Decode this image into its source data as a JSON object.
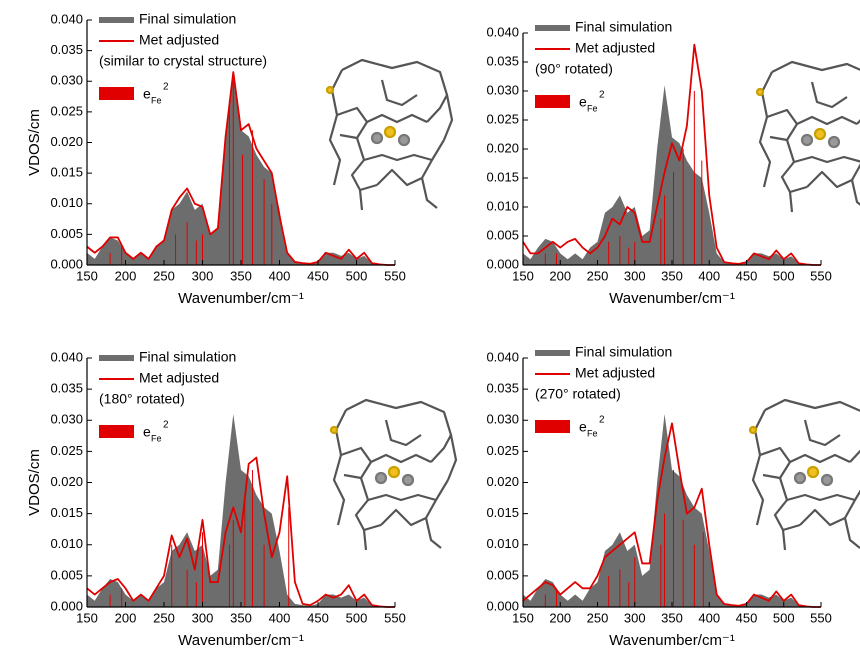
{
  "chart_data": [
    {
      "type": "area",
      "x_label": "Wavenumber/cm⁻¹",
      "y_label": "VDOS/cm",
      "annotation": "(similar to crystal structure)",
      "xlim": [
        150,
        550
      ],
      "xticks": [
        150,
        200,
        250,
        300,
        350,
        400,
        450,
        500,
        550
      ],
      "ylim": [
        0,
        0.04
      ],
      "yticks": [
        {
          "value": 0,
          "label": "0.000"
        },
        {
          "value": 0.005,
          "label": "0.005"
        },
        {
          "value": 0.01,
          "label": "0.010"
        },
        {
          "value": 0.015,
          "label": "0.015"
        },
        {
          "value": 0.02,
          "label": "0.020"
        },
        {
          "value": 0.025,
          "label": "0.025"
        },
        {
          "value": 0.03,
          "label": "0.030"
        },
        {
          "value": 0.035,
          "label": "0.035"
        },
        {
          "value": 0.04,
          "label": "0.040"
        }
      ],
      "x": [
        150,
        160,
        170,
        180,
        190,
        200,
        210,
        220,
        230,
        240,
        250,
        260,
        270,
        280,
        290,
        300,
        310,
        320,
        330,
        340,
        350,
        360,
        370,
        380,
        390,
        400,
        410,
        420,
        430,
        440,
        450,
        460,
        470,
        480,
        490,
        500,
        510,
        520,
        530,
        540,
        550
      ],
      "series": [
        {
          "name": "Final simulation",
          "style": "area",
          "color": "#6d6d6d",
          "values": [
            0.002,
            0.001,
            0.003,
            0.0045,
            0.004,
            0.002,
            0.001,
            0.002,
            0.001,
            0.003,
            0.004,
            0.009,
            0.01,
            0.012,
            0.009,
            0.01,
            0.005,
            0.006,
            0.02,
            0.031,
            0.022,
            0.021,
            0.018,
            0.016,
            0.015,
            0.009,
            0.002,
            0.0005,
            0.0003,
            0.0002,
            0.0005,
            0.002,
            0.002,
            0.0015,
            0.002,
            0.001,
            0.0015,
            0.0003,
            0.0001,
            0,
            0
          ]
        },
        {
          "name": "Met adjusted",
          "style": "line",
          "color": "#e00000",
          "values": [
            0.003,
            0.002,
            0.003,
            0.0045,
            0.0045,
            0.002,
            0.001,
            0.002,
            0.001,
            0.003,
            0.004,
            0.009,
            0.011,
            0.0125,
            0.01,
            0.0095,
            0.005,
            0.006,
            0.021,
            0.0315,
            0.022,
            0.023,
            0.019,
            0.017,
            0.015,
            0.008,
            0.002,
            0.0005,
            0.0003,
            0.0002,
            0.0005,
            0.002,
            0.0015,
            0.001,
            0.0025,
            0.001,
            0.002,
            0.0003,
            0.0001,
            0,
            0
          ]
        },
        {
          "name": "e",
          "name_sub": "Fe",
          "name_sup": "2",
          "style": "stick",
          "color": "#e00000",
          "x": [
            180,
            195,
            265,
            280,
            292,
            300,
            335,
            340,
            352,
            365,
            380,
            390
          ],
          "values": [
            0.002,
            0.003,
            0.005,
            0.007,
            0.004,
            0.005,
            0.027,
            0.03,
            0.018,
            0.022,
            0.014,
            0.01
          ]
        }
      ]
    },
    {
      "type": "area",
      "x_label": "Wavenumber/cm⁻¹",
      "annotation": "(90° rotated)",
      "xlim": [
        150,
        550
      ],
      "xticks": [
        150,
        200,
        250,
        300,
        350,
        400,
        450,
        500,
        550
      ],
      "ylim": [
        0,
        0.04
      ],
      "yticks": [
        {
          "value": 0,
          "label": "0.000"
        },
        {
          "value": 0.005,
          "label": "0.005"
        },
        {
          "value": 0.01,
          "label": "0.010"
        },
        {
          "value": 0.015,
          "label": "0.015"
        },
        {
          "value": 0.02,
          "label": "0.020"
        },
        {
          "value": 0.025,
          "label": "0.025"
        },
        {
          "value": 0.03,
          "label": "0.030"
        },
        {
          "value": 0.035,
          "label": "0.035"
        },
        {
          "value": 0.04,
          "label": "0.040"
        }
      ],
      "x": [
        150,
        160,
        170,
        180,
        190,
        200,
        210,
        220,
        230,
        240,
        250,
        260,
        270,
        280,
        290,
        300,
        310,
        320,
        330,
        340,
        350,
        360,
        370,
        380,
        390,
        400,
        410,
        420,
        430,
        440,
        450,
        460,
        470,
        480,
        490,
        500,
        510,
        520,
        530,
        540,
        550
      ],
      "series": [
        {
          "name": "Final simulation",
          "style": "area",
          "color": "#6d6d6d",
          "values": [
            0.002,
            0.001,
            0.003,
            0.0045,
            0.004,
            0.002,
            0.001,
            0.002,
            0.001,
            0.003,
            0.004,
            0.009,
            0.01,
            0.012,
            0.009,
            0.01,
            0.005,
            0.006,
            0.02,
            0.031,
            0.022,
            0.021,
            0.018,
            0.016,
            0.015,
            0.009,
            0.002,
            0.0005,
            0.0003,
            0.0002,
            0.0005,
            0.002,
            0.002,
            0.0015,
            0.002,
            0.001,
            0.0015,
            0.0003,
            0.0001,
            0,
            0
          ]
        },
        {
          "name": "Met adjusted",
          "style": "line",
          "color": "#e00000",
          "values": [
            0.004,
            0.002,
            0.002,
            0.003,
            0.004,
            0.003,
            0.004,
            0.0045,
            0.003,
            0.002,
            0.003,
            0.005,
            0.008,
            0.007,
            0.01,
            0.009,
            0.004,
            0.004,
            0.01,
            0.016,
            0.021,
            0.018,
            0.024,
            0.038,
            0.03,
            0.012,
            0.003,
            0.0005,
            0.0003,
            0.0002,
            0.0005,
            0.002,
            0.0015,
            0.001,
            0.0025,
            0.001,
            0.002,
            0.0003,
            0.0001,
            0,
            0
          ]
        },
        {
          "name": "e",
          "name_sub": "Fe",
          "name_sup": "2",
          "style": "stick",
          "color": "#e00000",
          "x": [
            180,
            195,
            265,
            280,
            292,
            300,
            335,
            340,
            352,
            365,
            380,
            390
          ],
          "values": [
            0.002,
            0.002,
            0.004,
            0.005,
            0.003,
            0.004,
            0.008,
            0.012,
            0.016,
            0.02,
            0.03,
            0.018
          ]
        }
      ]
    },
    {
      "type": "area",
      "x_label": "Wavenumber/cm⁻¹",
      "y_label": "VDOS/cm",
      "annotation": "(180° rotated)",
      "xlim": [
        150,
        550
      ],
      "xticks": [
        150,
        200,
        250,
        300,
        350,
        400,
        450,
        500,
        550
      ],
      "ylim": [
        0,
        0.04
      ],
      "yticks": [
        {
          "value": 0,
          "label": "0.000"
        },
        {
          "value": 0.005,
          "label": "0.005"
        },
        {
          "value": 0.01,
          "label": "0.010"
        },
        {
          "value": 0.015,
          "label": "0.015"
        },
        {
          "value": 0.02,
          "label": "0.020"
        },
        {
          "value": 0.025,
          "label": "0.025"
        },
        {
          "value": 0.03,
          "label": "0.030"
        },
        {
          "value": 0.035,
          "label": "0.035"
        },
        {
          "value": 0.04,
          "label": "0.040"
        }
      ],
      "x": [
        150,
        160,
        170,
        180,
        190,
        200,
        210,
        220,
        230,
        240,
        250,
        260,
        270,
        280,
        290,
        300,
        310,
        320,
        330,
        340,
        350,
        360,
        370,
        380,
        390,
        400,
        410,
        420,
        430,
        440,
        450,
        460,
        470,
        480,
        490,
        500,
        510,
        520,
        530,
        540,
        550
      ],
      "series": [
        {
          "name": "Final simulation",
          "style": "area",
          "color": "#6d6d6d",
          "values": [
            0.002,
            0.001,
            0.003,
            0.0045,
            0.004,
            0.002,
            0.001,
            0.002,
            0.001,
            0.003,
            0.004,
            0.009,
            0.01,
            0.012,
            0.009,
            0.01,
            0.005,
            0.006,
            0.02,
            0.031,
            0.022,
            0.021,
            0.018,
            0.016,
            0.015,
            0.009,
            0.002,
            0.0005,
            0.0003,
            0.0002,
            0.0005,
            0.002,
            0.002,
            0.0015,
            0.002,
            0.001,
            0.0015,
            0.0003,
            0.0001,
            0,
            0
          ]
        },
        {
          "name": "Met adjusted",
          "style": "line",
          "color": "#e00000",
          "values": [
            0.003,
            0.002,
            0.003,
            0.004,
            0.0045,
            0.003,
            0.001,
            0.002,
            0.001,
            0.003,
            0.005,
            0.0115,
            0.008,
            0.011,
            0.006,
            0.014,
            0.004,
            0.004,
            0.012,
            0.016,
            0.012,
            0.023,
            0.024,
            0.015,
            0.008,
            0.012,
            0.021,
            0.004,
            0.0005,
            0.0003,
            0.001,
            0.002,
            0.0015,
            0.002,
            0.0035,
            0.001,
            0.002,
            0.0003,
            0.0001,
            0,
            0
          ]
        },
        {
          "name": "e",
          "name_sub": "Fe",
          "name_sup": "2",
          "style": "stick",
          "color": "#e00000",
          "x": [
            180,
            195,
            260,
            280,
            292,
            300,
            335,
            340,
            355,
            365,
            380,
            412
          ],
          "values": [
            0.002,
            0.003,
            0.01,
            0.006,
            0.004,
            0.012,
            0.01,
            0.014,
            0.018,
            0.022,
            0.01,
            0.016
          ]
        }
      ]
    },
    {
      "type": "area",
      "x_label": "Wavenumber/cm⁻¹",
      "annotation": "(270° rotated)",
      "xlim": [
        150,
        550
      ],
      "xticks": [
        150,
        200,
        250,
        300,
        350,
        400,
        450,
        500,
        550
      ],
      "ylim": [
        0,
        0.04
      ],
      "yticks": [
        {
          "value": 0,
          "label": "0.000"
        },
        {
          "value": 0.005,
          "label": "0.005"
        },
        {
          "value": 0.01,
          "label": "0.010"
        },
        {
          "value": 0.015,
          "label": "0.015"
        },
        {
          "value": 0.02,
          "label": "0.020"
        },
        {
          "value": 0.025,
          "label": "0.025"
        },
        {
          "value": 0.03,
          "label": "0.030"
        },
        {
          "value": 0.035,
          "label": "0.035"
        },
        {
          "value": 0.04,
          "label": "0.040"
        }
      ],
      "x": [
        150,
        160,
        170,
        180,
        190,
        200,
        210,
        220,
        230,
        240,
        250,
        260,
        270,
        280,
        290,
        300,
        310,
        320,
        330,
        340,
        350,
        360,
        370,
        380,
        390,
        400,
        410,
        420,
        430,
        440,
        450,
        460,
        470,
        480,
        490,
        500,
        510,
        520,
        530,
        540,
        550
      ],
      "series": [
        {
          "name": "Final simulation",
          "style": "area",
          "color": "#6d6d6d",
          "values": [
            0.002,
            0.001,
            0.003,
            0.0045,
            0.004,
            0.002,
            0.001,
            0.002,
            0.001,
            0.003,
            0.004,
            0.009,
            0.01,
            0.012,
            0.009,
            0.01,
            0.005,
            0.006,
            0.02,
            0.031,
            0.022,
            0.021,
            0.018,
            0.016,
            0.015,
            0.009,
            0.002,
            0.0005,
            0.0003,
            0.0002,
            0.0005,
            0.002,
            0.002,
            0.0015,
            0.002,
            0.001,
            0.0015,
            0.0003,
            0.0001,
            0,
            0
          ]
        },
        {
          "name": "Met adjusted",
          "style": "line",
          "color": "#e00000",
          "values": [
            0.001,
            0.002,
            0.003,
            0.004,
            0.0035,
            0.002,
            0.003,
            0.004,
            0.003,
            0.003,
            0.005,
            0.008,
            0.009,
            0.01,
            0.011,
            0.012,
            0.007,
            0.007,
            0.017,
            0.024,
            0.0295,
            0.022,
            0.015,
            0.016,
            0.019,
            0.01,
            0.002,
            0.0005,
            0.0003,
            0.0002,
            0.0005,
            0.002,
            0.0015,
            0.001,
            0.0025,
            0.001,
            0.002,
            0.0003,
            0.0001,
            0,
            0
          ]
        },
        {
          "name": "e",
          "name_sub": "Fe",
          "name_sup": "2",
          "style": "stick",
          "color": "#e00000",
          "x": [
            180,
            195,
            265,
            280,
            292,
            300,
            335,
            340,
            352,
            365,
            380,
            392
          ],
          "values": [
            0.002,
            0.003,
            0.005,
            0.006,
            0.004,
            0.008,
            0.01,
            0.015,
            0.022,
            0.014,
            0.01,
            0.012
          ]
        }
      ]
    }
  ]
}
